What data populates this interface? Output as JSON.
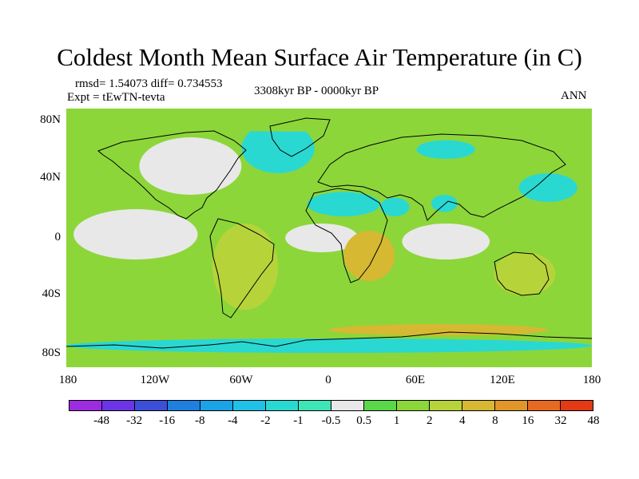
{
  "title": "Coldest Month Mean Surface Air Temperature (in C)",
  "stats": "rmsd= 1.54073 diff= 0.734553",
  "experiment": "Expt = tEwTN-tevta",
  "period": "3308kyr BP - 0000kyr BP",
  "season": "ANN",
  "y_ticks": [
    "80N",
    "40N",
    "0",
    "40S",
    "80S"
  ],
  "x_ticks": [
    "180",
    "120W",
    "60W",
    "0",
    "60E",
    "120E",
    "180"
  ],
  "colorbar": {
    "labels": [
      "-48",
      "-32",
      "-16",
      "-8",
      "-4",
      "-2",
      "-1",
      "-0.5",
      "0.5",
      "1",
      "2",
      "4",
      "8",
      "16",
      "32",
      "48"
    ],
    "colors": [
      "#9d2be0",
      "#6b35e6",
      "#3c4fd8",
      "#1f7fe0",
      "#1ba3e8",
      "#20c1e6",
      "#2ad8d2",
      "#3ee6b7",
      "#e8e8e8",
      "#5ad84a",
      "#8cd63a",
      "#b6d43a",
      "#d6b832",
      "#e09628",
      "#e66a22",
      "#e23a14"
    ]
  },
  "chart_data": {
    "type": "heatmap",
    "projection": "cylindrical-equidistant",
    "lon_range": [
      -180,
      180
    ],
    "lat_range": [
      -90,
      90
    ],
    "levels": [
      -48,
      -32,
      -16,
      -8,
      -4,
      -2,
      -1,
      -0.5,
      0.5,
      1,
      2,
      4,
      8,
      16,
      32,
      48
    ],
    "regions": [
      {
        "name": "north-atlantic-arctic",
        "lon": [
          -60,
          -10
        ],
        "lat": [
          45,
          80
        ],
        "value": -2
      },
      {
        "name": "greenland",
        "lon": [
          -55,
          -20
        ],
        "lat": [
          62,
          82
        ],
        "value": -1.5
      },
      {
        "name": "north-africa-sahara",
        "lon": [
          -15,
          35
        ],
        "lat": [
          15,
          32
        ],
        "value": -2
      },
      {
        "name": "arabia",
        "lon": [
          35,
          55
        ],
        "lat": [
          15,
          28
        ],
        "value": -1.5
      },
      {
        "name": "india",
        "lon": [
          70,
          88
        ],
        "lat": [
          18,
          30
        ],
        "value": -2
      },
      {
        "name": "central-russia",
        "lon": [
          60,
          100
        ],
        "lat": [
          55,
          68
        ],
        "value": -1.5
      },
      {
        "name": "northwest-pacific",
        "lon": [
          130,
          170
        ],
        "lat": [
          25,
          45
        ],
        "value": -1.5
      },
      {
        "name": "arctic-ocean-margin",
        "lon": [
          -180,
          180
        ],
        "lat": [
          74,
          84
        ],
        "value": 1
      },
      {
        "name": "north-america",
        "lon": [
          -130,
          -60
        ],
        "lat": [
          30,
          70
        ],
        "value": 0
      },
      {
        "name": "eastern-pacific",
        "lon": [
          -175,
          -90
        ],
        "lat": [
          -15,
          20
        ],
        "value": 0
      },
      {
        "name": "atlantic-tropics",
        "lon": [
          -30,
          20
        ],
        "lat": [
          -10,
          10
        ],
        "value": 0
      },
      {
        "name": "south-america",
        "lon": [
          -80,
          -35
        ],
        "lat": [
          -50,
          10
        ],
        "value": 3
      },
      {
        "name": "africa-south",
        "lon": [
          10,
          45
        ],
        "lat": [
          -30,
          5
        ],
        "value": 4
      },
      {
        "name": "australia",
        "lon": [
          113,
          155
        ],
        "lat": [
          -40,
          -10
        ],
        "value": 3
      },
      {
        "name": "southern-ocean-ring",
        "lon": [
          -180,
          180
        ],
        "lat": [
          -70,
          -55
        ],
        "value": 1.5
      },
      {
        "name": "southern-ocean-warm-band",
        "lon": [
          0,
          150
        ],
        "lat": [
          -68,
          -60
        ],
        "value": 6
      },
      {
        "name": "weddell-ross-ice",
        "lon": [
          -180,
          180
        ],
        "lat": [
          -80,
          -70
        ],
        "value": -2
      },
      {
        "name": "tropical-indian-ocean",
        "lon": [
          50,
          110
        ],
        "lat": [
          -15,
          10
        ],
        "value": 0
      },
      {
        "name": "subtropical-south-pacific",
        "lon": [
          -180,
          -80
        ],
        "lat": [
          -45,
          -15
        ],
        "value": 1.5
      }
    ]
  }
}
